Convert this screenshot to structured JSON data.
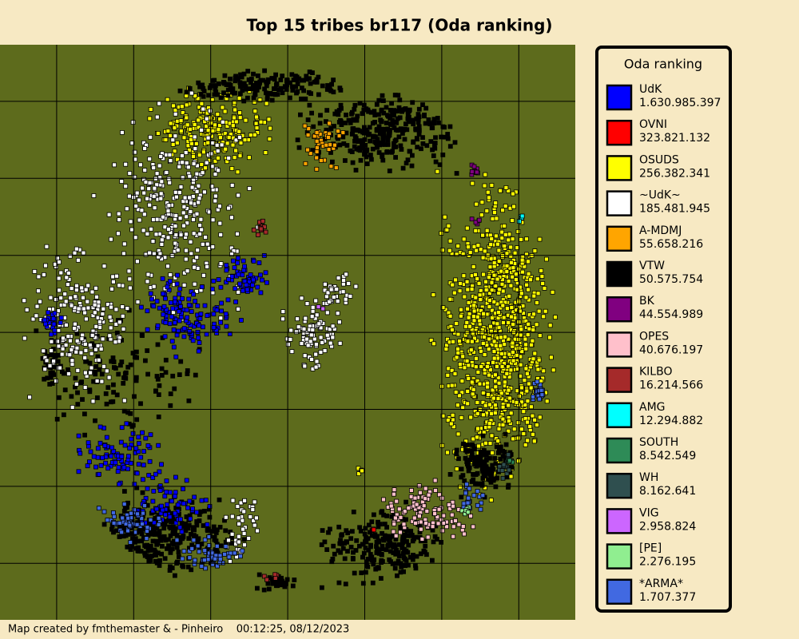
{
  "title": "Top 15 tribes br117 (Oda ranking)",
  "legend": {
    "title": "Oda ranking",
    "items": [
      {
        "name": "UdK",
        "points": "1.630.985.397",
        "color": "#0000ff"
      },
      {
        "name": "OVNI",
        "points": "323.821.132",
        "color": "#ff0000"
      },
      {
        "name": "OSUDS",
        "points": "256.382.341",
        "color": "#ffff00"
      },
      {
        "name": "~UdK~",
        "points": "185.481.945",
        "color": "#ffffff"
      },
      {
        "name": "A-MDMJ",
        "points": "55.658.216",
        "color": "#ffa500"
      },
      {
        "name": "VTW",
        "points": "50.575.754",
        "color": "#000000"
      },
      {
        "name": "BK",
        "points": "44.554.989",
        "color": "#800080"
      },
      {
        "name": "OPES",
        "points": "40.676.197",
        "color": "#ffc0cb"
      },
      {
        "name": "KILBO",
        "points": "16.214.566",
        "color": "#a52a2a"
      },
      {
        "name": "AMG",
        "points": "12.294.882",
        "color": "#00ffff"
      },
      {
        "name": "SOUTH",
        "points": "8.542.549",
        "color": "#2e8b57"
      },
      {
        "name": "WH",
        "points": "8.162.641",
        "color": "#2f4f4f"
      },
      {
        "name": "VIG",
        "points": "2.958.824",
        "color": "#cc66ff"
      },
      {
        "name": "[PE]",
        "points": "2.276.195",
        "color": "#90ee90"
      },
      {
        "name": "*ARMA*",
        "points": "1.707.377",
        "color": "#4169e1"
      }
    ]
  },
  "footer": "Map created by fmthemaster & - Pinheiro    00:12:25, 08/12/2023"
}
